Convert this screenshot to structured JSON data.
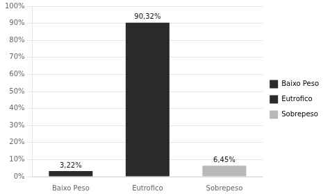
{
  "chart_data": {
    "type": "bar",
    "categories": [
      "Baixo Peso",
      "Eutrofico",
      "Sobrepeso"
    ],
    "values": [
      3.22,
      90.32,
      6.45
    ],
    "value_labels": [
      "3,22%",
      "90,32%",
      "6,45%"
    ],
    "data_labels": true,
    "colors": [
      "#2a2a2a",
      "#2a2a2a",
      "#b8b8b8"
    ],
    "ylim": [
      0,
      100
    ],
    "yticks": [
      {
        "value": 0,
        "label": "0%"
      },
      {
        "value": 10,
        "label": "10%"
      },
      {
        "value": 20,
        "label": "20%"
      },
      {
        "value": 30,
        "label": "30%"
      },
      {
        "value": 40,
        "label": "40%"
      },
      {
        "value": 50,
        "label": "50%"
      },
      {
        "value": 60,
        "label": "60%"
      },
      {
        "value": 70,
        "label": "70%"
      },
      {
        "value": 80,
        "label": "80%"
      },
      {
        "value": 90,
        "label": "90%"
      },
      {
        "value": 100,
        "label": "100%"
      }
    ],
    "grid": true,
    "legend": "right"
  }
}
